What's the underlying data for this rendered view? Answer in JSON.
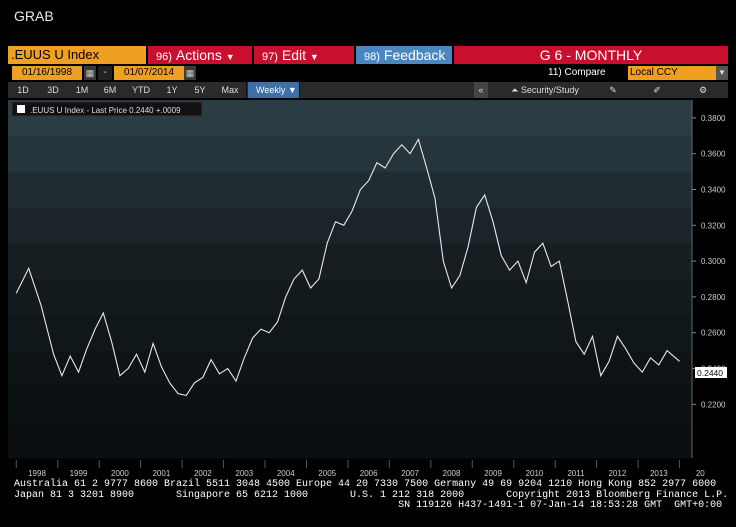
{
  "window_title": "GRAB",
  "toolbar": {
    "security": ".EUUS U Index",
    "actions": {
      "num": "96)",
      "label": "Actions"
    },
    "edit": {
      "num": "97)",
      "label": "Edit"
    },
    "feedback": {
      "num": "98)",
      "label": "Feedback"
    },
    "title": "G 6 - MONTHLY"
  },
  "dates": {
    "start": "01/16/1998",
    "separator": "-",
    "end": "01/07/2014"
  },
  "compare_label": "11) Compare",
  "currency": "Local CCY",
  "periods": [
    "1D",
    "3D",
    "1M",
    "6M",
    "YTD",
    "1Y",
    "5Y",
    "Max"
  ],
  "frequency": "Weekly",
  "tools": {
    "collapse": "«",
    "security_study": "Security/Study"
  },
  "legend": ".EUUS U Index - Last Price 0.2440 +.0009",
  "last_price_tag": "0.2440",
  "chart_data": {
    "type": "line",
    "series": [
      {
        "name": ".EUUS U Index - Last Price",
        "x": [
          1998.0,
          1998.3,
          1998.6,
          1998.9,
          1999.1,
          1999.3,
          1999.5,
          1999.7,
          1999.9,
          2000.1,
          2000.3,
          2000.5,
          2000.7,
          2000.9,
          2001.1,
          2001.3,
          2001.5,
          2001.7,
          2001.9,
          2002.1,
          2002.3,
          2002.5,
          2002.7,
          2002.9,
          2003.1,
          2003.3,
          2003.5,
          2003.7,
          2003.9,
          2004.1,
          2004.3,
          2004.5,
          2004.7,
          2004.9,
          2005.1,
          2005.3,
          2005.5,
          2005.7,
          2005.9,
          2006.1,
          2006.3,
          2006.5,
          2006.7,
          2006.9,
          2007.1,
          2007.3,
          2007.5,
          2007.7,
          2007.9,
          2008.1,
          2008.3,
          2008.5,
          2008.7,
          2008.9,
          2009.1,
          2009.3,
          2009.5,
          2009.7,
          2009.9,
          2010.1,
          2010.3,
          2010.5,
          2010.7,
          2010.9,
          2011.1,
          2011.3,
          2011.5,
          2011.7,
          2011.9,
          2012.1,
          2012.3,
          2012.5,
          2012.7,
          2012.9,
          2013.1,
          2013.3,
          2013.5,
          2013.7,
          2013.9,
          2014.0
        ],
        "values": [
          0.282,
          0.296,
          0.275,
          0.248,
          0.236,
          0.247,
          0.238,
          0.251,
          0.262,
          0.271,
          0.255,
          0.236,
          0.24,
          0.248,
          0.238,
          0.254,
          0.241,
          0.232,
          0.226,
          0.225,
          0.232,
          0.235,
          0.245,
          0.237,
          0.24,
          0.233,
          0.246,
          0.257,
          0.262,
          0.26,
          0.266,
          0.28,
          0.29,
          0.295,
          0.285,
          0.29,
          0.31,
          0.322,
          0.32,
          0.328,
          0.34,
          0.345,
          0.355,
          0.352,
          0.36,
          0.365,
          0.36,
          0.368,
          0.352,
          0.335,
          0.3,
          0.285,
          0.292,
          0.308,
          0.33,
          0.337,
          0.322,
          0.303,
          0.295,
          0.3,
          0.288,
          0.305,
          0.31,
          0.297,
          0.3,
          0.278,
          0.255,
          0.248,
          0.258,
          0.236,
          0.244,
          0.258,
          0.251,
          0.243,
          0.238,
          0.246,
          0.242,
          0.25,
          0.246,
          0.244
        ]
      }
    ],
    "ylim": [
      0.19,
      0.39
    ],
    "yticks": [
      "0.2200",
      "0.2400",
      "0.2600",
      "0.2800",
      "0.3000",
      "0.3200",
      "0.3400",
      "0.3600",
      "0.3800"
    ],
    "xlim": [
      1997.8,
      2014.3
    ],
    "xticks": [
      "1998",
      "1999",
      "2000",
      "2001",
      "2002",
      "2003",
      "2004",
      "2005",
      "2006",
      "2007",
      "2008",
      "2009",
      "2010",
      "2011",
      "2012",
      "2013",
      "20"
    ],
    "grid": false,
    "legend_position": "top-left"
  },
  "footer": {
    "line1": "Australia 61 2 9777 8600 Brazil 5511 3048 4500 Europe 44 20 7330 7500 Germany 49 69 9204 1210 Hong Kong 852 2977 6000",
    "line2": "Japan 81 3 3201 8900       Singapore 65 6212 1000       U.S. 1 212 318 2000       Copyright 2013 Bloomberg Finance L.P.",
    "line3": "                                                                SN 119126 H437-1491-1 07-Jan-14 18:53:28 GMT  GMT+0:00"
  },
  "colors": {
    "orange": "#f0a020",
    "red": "#c8102e",
    "blue": "#4a87c0"
  }
}
